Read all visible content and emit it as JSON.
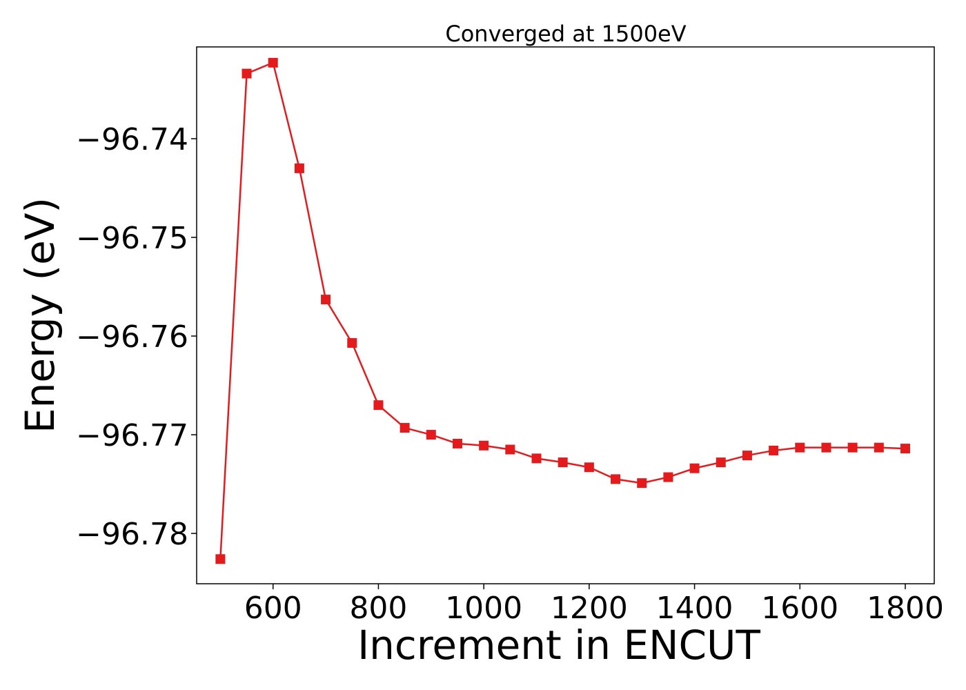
{
  "chart_data": {
    "type": "line",
    "title": "Converged at 1500eV",
    "xlabel": "Increment in ENCUT",
    "ylabel": "Energy (eV)",
    "xlim": [
      455,
      1855
    ],
    "ylim": [
      -96.7851,
      -96.7307
    ],
    "xticks": [
      600,
      800,
      1000,
      1200,
      1400,
      1600,
      1800
    ],
    "xtick_labels": [
      "600",
      "800",
      "1000",
      "1200",
      "1400",
      "1600",
      "1800"
    ],
    "yticks": [
      -96.74,
      -96.75,
      -96.76,
      -96.77,
      -96.78
    ],
    "ytick_labels": [
      "−96.74",
      "−96.75",
      "−96.76",
      "−96.77",
      "−96.78"
    ],
    "grid": false,
    "series": [
      {
        "marker": "square",
        "color": "#e41a1c",
        "x": [
          500,
          550,
          600,
          650,
          700,
          750,
          800,
          850,
          900,
          950,
          1000,
          1050,
          1100,
          1150,
          1200,
          1250,
          1300,
          1350,
          1400,
          1450,
          1500,
          1550,
          1600,
          1650,
          1700,
          1750,
          1800
        ],
        "y": [
          -96.7826,
          -96.7334,
          -96.7323,
          -96.743,
          -96.7563,
          -96.7607,
          -96.767,
          -96.7693,
          -96.77,
          -96.7709,
          -96.7711,
          -96.7715,
          -96.7724,
          -96.7728,
          -96.7733,
          -96.7745,
          -96.7749,
          -96.7743,
          -96.7734,
          -96.7728,
          -96.7721,
          -96.7716,
          -96.7713,
          -96.7713,
          -96.7713,
          -96.7713,
          -96.7714
        ]
      }
    ]
  }
}
